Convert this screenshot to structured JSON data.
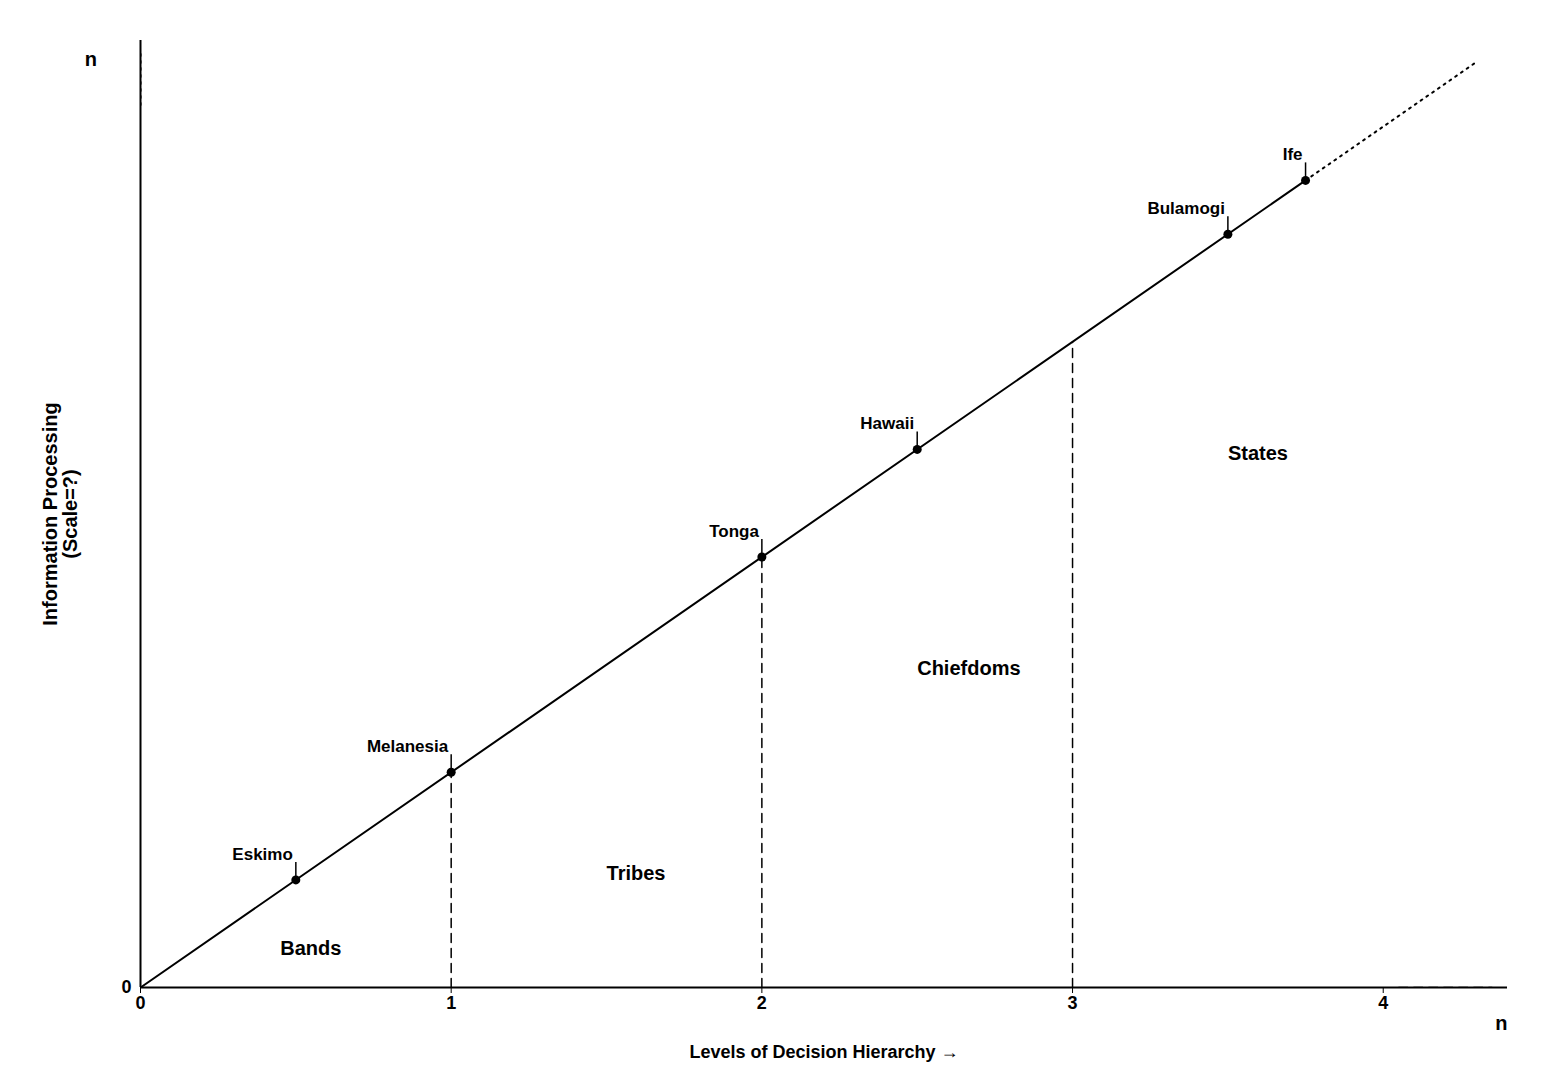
{
  "chart_data": {
    "type": "line",
    "xlabel": "Levels of Decision Hierarchy",
    "ylabel": "Information Processing\n(Scale=?)",
    "xlim": [
      0,
      4.4
    ],
    "ylim": [
      0,
      4.4
    ],
    "xticks": [
      0,
      1,
      2,
      3,
      4
    ],
    "yticks": [
      0
    ],
    "color": "#000000",
    "series": [
      {
        "x": [
          0,
          3.75
        ],
        "values": [
          0,
          3.75
        ],
        "line_style": "solid"
      },
      {
        "x": [
          3.75,
          4.3
        ],
        "values": [
          3.75,
          4.3
        ],
        "line_style": "dotted"
      },
      {
        "x": [
          1,
          1
        ],
        "values": [
          0,
          1
        ],
        "line_style": "dashed"
      },
      {
        "x": [
          2,
          2
        ],
        "values": [
          0,
          2
        ],
        "line_style": "dashed"
      },
      {
        "x": [
          3,
          3
        ],
        "values": [
          0,
          3
        ],
        "line_style": "dashed"
      },
      {
        "x": [
          0,
          0
        ],
        "values": [
          4.1,
          4.35
        ],
        "line_style": "dotted"
      },
      {
        "x": [
          4.05,
          4.35
        ],
        "values": [
          0,
          0
        ],
        "line_style": "dashed"
      },
      {
        "type": "scatter",
        "marker": "circle",
        "x": [
          0.5,
          1.0,
          2.0,
          2.5,
          3.5,
          3.75
        ],
        "values": [
          0.5,
          1.0,
          2.0,
          2.5,
          3.5,
          3.75
        ],
        "labels": [
          "Eskimo",
          "Melanesia",
          "Tonga",
          "Hawaii",
          "Bulamogi",
          "Ife"
        ]
      }
    ],
    "annotations": [
      {
        "text": "Bands",
        "x": 0.45,
        "y": 0.15
      },
      {
        "text": "Tribes",
        "x": 1.5,
        "y": 0.5
      },
      {
        "text": "Chiefdoms",
        "x": 2.5,
        "y": 1.45
      },
      {
        "text": "States",
        "x": 3.5,
        "y": 2.45
      },
      {
        "text": "n",
        "x": -0.14,
        "y": 4.31
      },
      {
        "text": "n",
        "x": 4.38,
        "y": -0.13
      }
    ]
  }
}
